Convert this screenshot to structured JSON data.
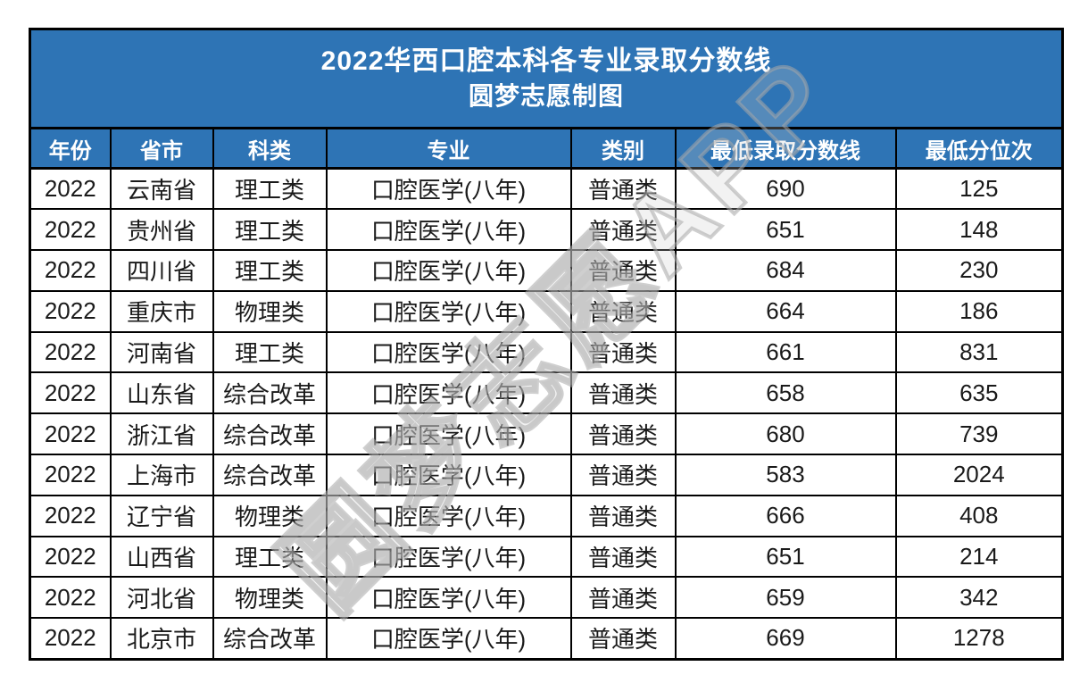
{
  "title": {
    "line1": "2022华西口腔本科各专业录取分数线",
    "line2": "圆梦志愿制图"
  },
  "watermark": "圆梦志愿APP",
  "colors": {
    "header_bg": "#2E74B5",
    "header_text": "#FFFFFF",
    "body_text": "#1A1A1A",
    "border": "#000000",
    "watermark": "#BEBEBE"
  },
  "chart_data": {
    "type": "table",
    "title": "2022华西口腔本科各专业录取分数线",
    "subtitle": "圆梦志愿制图",
    "columns": [
      "年份",
      "省市",
      "科类",
      "专业",
      "类别",
      "最低录取分数线",
      "最低分位次"
    ],
    "rows": [
      [
        "2022",
        "云南省",
        "理工类",
        "口腔医学(八年)",
        "普通类",
        "690",
        "125"
      ],
      [
        "2022",
        "贵州省",
        "理工类",
        "口腔医学(八年)",
        "普通类",
        "651",
        "148"
      ],
      [
        "2022",
        "四川省",
        "理工类",
        "口腔医学(八年)",
        "普通类",
        "684",
        "230"
      ],
      [
        "2022",
        "重庆市",
        "物理类",
        "口腔医学(八年)",
        "普通类",
        "664",
        "186"
      ],
      [
        "2022",
        "河南省",
        "理工类",
        "口腔医学(八年)",
        "普通类",
        "661",
        "831"
      ],
      [
        "2022",
        "山东省",
        "综合改革",
        "口腔医学(八年)",
        "普通类",
        "658",
        "635"
      ],
      [
        "2022",
        "浙江省",
        "综合改革",
        "口腔医学(八年)",
        "普通类",
        "680",
        "739"
      ],
      [
        "2022",
        "上海市",
        "综合改革",
        "口腔医学(八年)",
        "普通类",
        "583",
        "2024"
      ],
      [
        "2022",
        "辽宁省",
        "物理类",
        "口腔医学(八年)",
        "普通类",
        "666",
        "408"
      ],
      [
        "2022",
        "山西省",
        "理工类",
        "口腔医学(八年)",
        "普通类",
        "651",
        "214"
      ],
      [
        "2022",
        "河北省",
        "物理类",
        "口腔医学(八年)",
        "普通类",
        "659",
        "342"
      ],
      [
        "2022",
        "北京市",
        "综合改革",
        "口腔医学(八年)",
        "普通类",
        "669",
        "1278"
      ]
    ]
  }
}
